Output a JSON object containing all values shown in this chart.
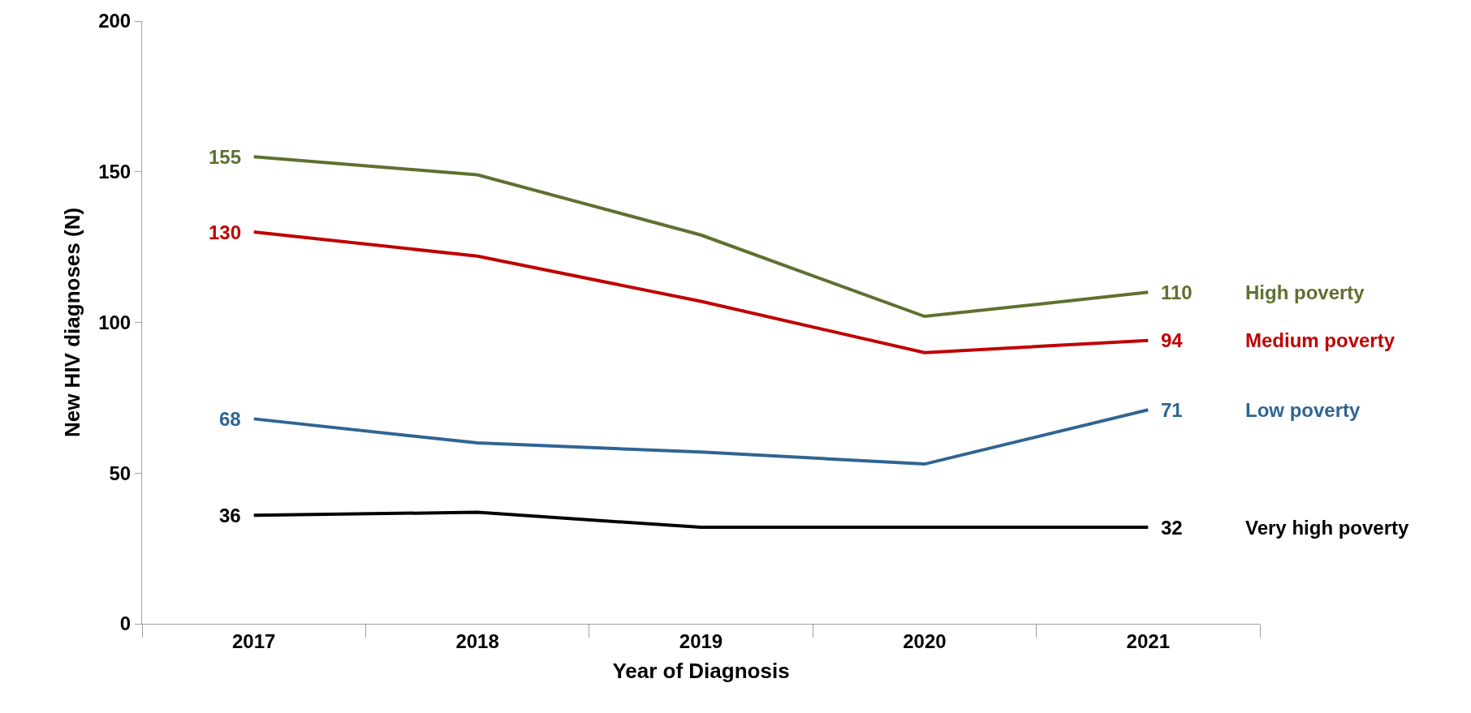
{
  "chart_data": {
    "type": "line",
    "xlabel": "Year of Diagnosis",
    "ylabel": "New HIV diagnoses (N)",
    "categories": [
      "2017",
      "2018",
      "2019",
      "2020",
      "2021"
    ],
    "series": [
      {
        "name": "High poverty",
        "color": "#5f7030",
        "values": [
          155,
          149,
          129,
          102,
          110
        ],
        "value_labels": [
          "155",
          null,
          null,
          null,
          "110"
        ]
      },
      {
        "name": "Medium poverty",
        "color": "#c00000",
        "values": [
          130,
          122,
          107,
          90,
          94
        ],
        "value_labels": [
          "130",
          null,
          null,
          null,
          "94"
        ]
      },
      {
        "name": "Low poverty",
        "color": "#2f6593",
        "values": [
          68,
          60,
          57,
          53,
          71
        ],
        "value_labels": [
          "68",
          null,
          null,
          null,
          "71"
        ]
      },
      {
        "name": "Very high poverty",
        "color": "#000000",
        "values": [
          36,
          37,
          32,
          32,
          32
        ],
        "value_labels": [
          "36",
          null,
          null,
          null,
          "32"
        ]
      }
    ],
    "ylim": [
      0,
      200
    ],
    "yticks": [
      0,
      50,
      100,
      150,
      200
    ],
    "legend": false,
    "marker": "none",
    "line_style": "solid"
  }
}
